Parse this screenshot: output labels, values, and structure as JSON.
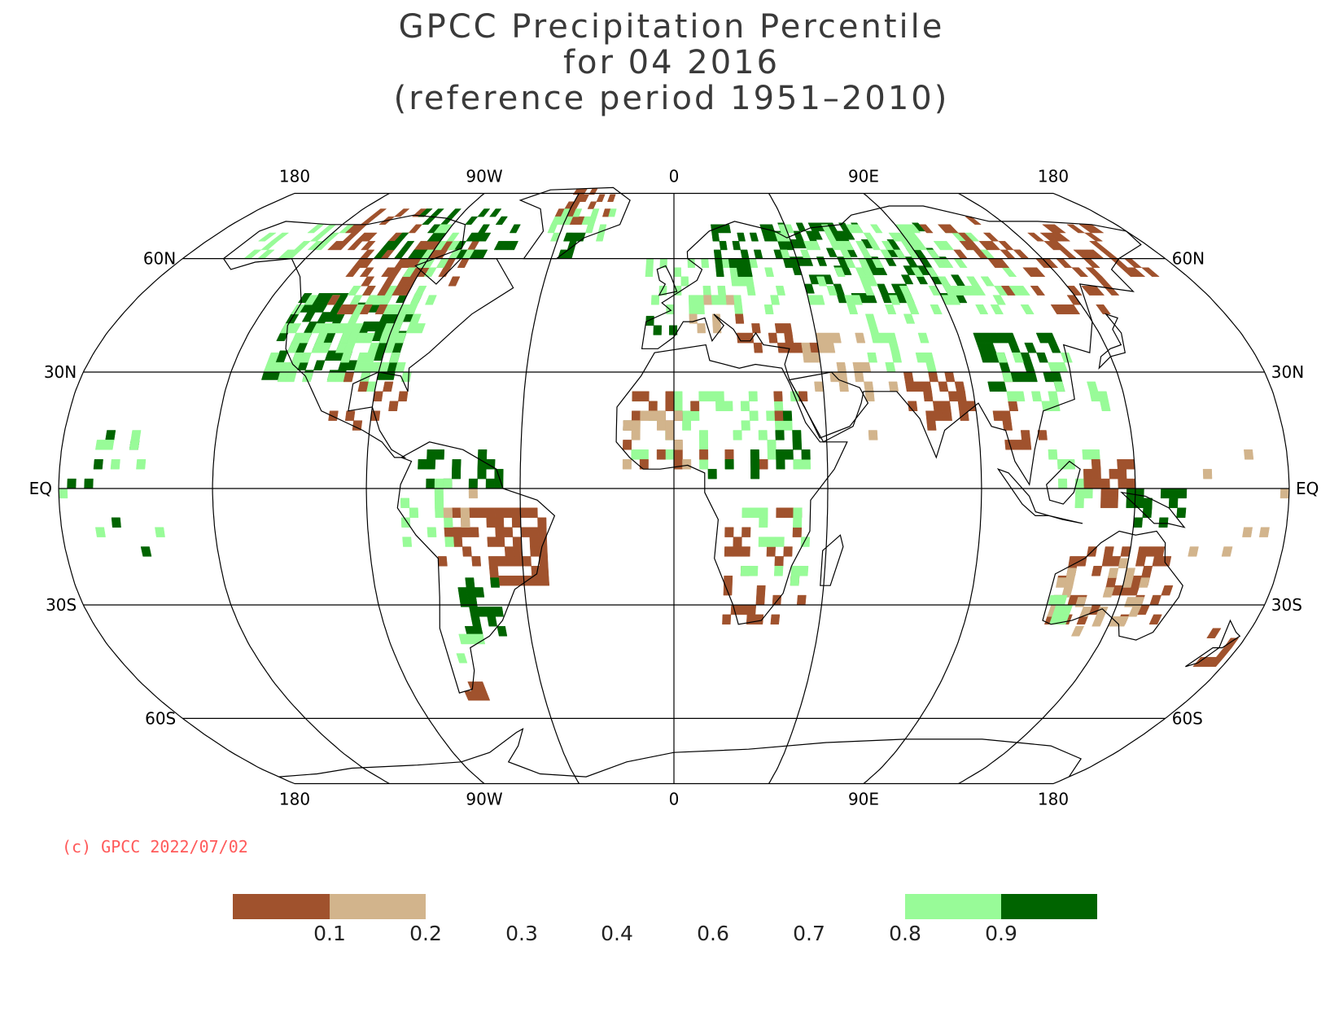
{
  "title": {
    "line1": "GPCC Precipitation Percentile",
    "line2": "for 04 2016",
    "line3": "(reference period 1951–2010)"
  },
  "map": {
    "projection": "Robinson",
    "grid_lon": [
      -135,
      -90,
      -45,
      0,
      45,
      90,
      135,
      180
    ],
    "grid_lat": [
      -60,
      -30,
      0,
      30,
      60
    ],
    "lon_labels": [
      "180",
      "90W",
      "0",
      "90E",
      "180"
    ],
    "lat_labels_left": [
      "60N",
      "30N",
      "EQ",
      "30S",
      "60S"
    ],
    "lat_labels_right": [
      "60N",
      "30N",
      "EQ",
      "30S",
      "60S"
    ]
  },
  "copyright": "(c) GPCC 2022/07/02",
  "legend": {
    "labels": [
      "0.1",
      "0.2",
      "0.3",
      "0.4",
      "0.6",
      "0.7",
      "0.8",
      "0.9"
    ],
    "classes": [
      {
        "range": "< 0.1",
        "color": "#a0522d"
      },
      {
        "range": "0.1 - 0.2",
        "color": "#d2b48c"
      },
      {
        "range": "0.8 - 0.9",
        "color": "#98fb98"
      },
      {
        "range": "> 0.9",
        "color": "#006400"
      }
    ]
  },
  "colors": {
    "very_dry": "#a0522d",
    "dry": "#d2b48c",
    "wet": "#98fb98",
    "very_wet": "#006400",
    "copyright": "#ff5a5a"
  }
}
